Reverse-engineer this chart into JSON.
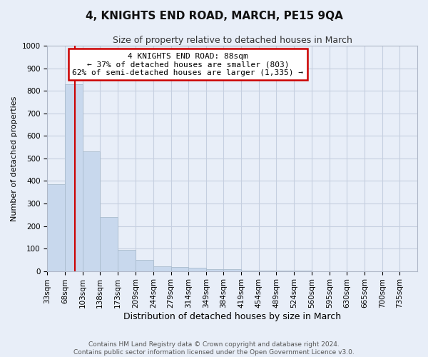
{
  "title": "4, KNIGHTS END ROAD, MARCH, PE15 9QA",
  "subtitle": "Size of property relative to detached houses in March",
  "xlabel": "Distribution of detached houses by size in March",
  "ylabel": "Number of detached properties",
  "bar_color": "#c8d8ed",
  "bar_edge_color": "#aabcce",
  "grid_color": "#c5cfe0",
  "background_color": "#e8eef8",
  "fig_background_color": "#e8eef8",
  "annotation_box_facecolor": "#ffffff",
  "annotation_box_edge": "#cc0000",
  "red_line_color": "#cc0000",
  "property_size_x": 88,
  "property_label": "4 KNIGHTS END ROAD: 88sqm",
  "annotation_line1": "← 37% of detached houses are smaller (803)",
  "annotation_line2": "62% of semi-detached houses are larger (1,335) →",
  "footer_line1": "Contains HM Land Registry data © Crown copyright and database right 2024.",
  "footer_line2": "Contains public sector information licensed under the Open Government Licence v3.0.",
  "bin_lefts": [
    33,
    68,
    103,
    138,
    173,
    209,
    244,
    279,
    314,
    349,
    384,
    419,
    454,
    489,
    524,
    560,
    595,
    630,
    665,
    700
  ],
  "bin_width": 35,
  "bin_labels": [
    "33sqm",
    "68sqm",
    "103sqm",
    "138sqm",
    "173sqm",
    "209sqm",
    "244sqm",
    "279sqm",
    "314sqm",
    "349sqm",
    "384sqm",
    "419sqm",
    "454sqm",
    "489sqm",
    "524sqm",
    "560sqm",
    "595sqm",
    "630sqm",
    "665sqm",
    "700sqm",
    "735sqm"
  ],
  "counts": [
    385,
    830,
    530,
    240,
    95,
    50,
    20,
    18,
    13,
    8,
    8,
    3,
    2,
    1,
    1,
    0,
    0,
    0,
    0,
    0
  ],
  "ylim": [
    0,
    1000
  ],
  "xlim": [
    33,
    770
  ],
  "yticks": [
    0,
    100,
    200,
    300,
    400,
    500,
    600,
    700,
    800,
    900,
    1000
  ],
  "title_fontsize": 11,
  "subtitle_fontsize": 9,
  "ylabel_fontsize": 8,
  "xlabel_fontsize": 9,
  "tick_fontsize": 7.5,
  "footer_fontsize": 6.5,
  "annot_fontsize": 8
}
